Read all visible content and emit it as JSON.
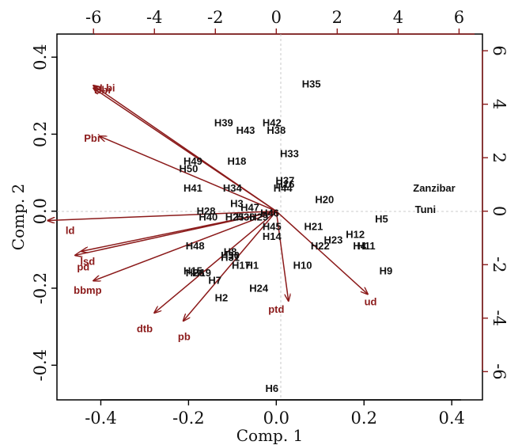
{
  "colors": {
    "arrow": "#8b1a1a",
    "text": "#111111"
  },
  "chart_data": {
    "type": "scatter",
    "subtype": "biplot",
    "xlabel": "Comp. 1",
    "ylabel": "Comp. 2",
    "xlim": [
      -0.5,
      0.47
    ],
    "ylim": [
      -0.49,
      0.46
    ],
    "x_ticks": [
      "-0.4",
      "-0.2",
      "0.0",
      "0.2",
      "0.4"
    ],
    "x_tick_values": [
      -0.4,
      -0.2,
      0.0,
      0.2,
      0.4
    ],
    "y_ticks": [
      "-0.4",
      "-0.2",
      "0.0",
      "0.2",
      "0.4"
    ],
    "y_tick_values": [
      -0.4,
      -0.2,
      0.0,
      0.2,
      0.4
    ],
    "top_ticks": [
      "-6",
      "-4",
      "-2",
      "0",
      "2",
      "4",
      "6"
    ],
    "top_tick_values": [
      -6,
      -4,
      -2,
      0,
      2,
      4,
      6
    ],
    "right_ticks": [
      "6",
      "4",
      "2",
      "0",
      "-2",
      "-4",
      "-6"
    ],
    "right_tick_values": [
      6,
      4,
      2,
      0,
      -2,
      -4,
      -6
    ],
    "loadings_scale": 14.4,
    "observations": [
      {
        "label": "H35",
        "x": 0.08,
        "y": 0.33
      },
      {
        "label": "H39",
        "x": -0.12,
        "y": 0.23
      },
      {
        "label": "H42",
        "x": -0.01,
        "y": 0.23
      },
      {
        "label": "H43",
        "x": -0.07,
        "y": 0.21
      },
      {
        "label": "H38",
        "x": 0.0,
        "y": 0.21
      },
      {
        "label": "H33",
        "x": 0.03,
        "y": 0.15
      },
      {
        "label": "H49",
        "x": -0.19,
        "y": 0.13
      },
      {
        "label": "H18",
        "x": -0.09,
        "y": 0.13
      },
      {
        "label": "H50",
        "x": -0.2,
        "y": 0.11
      },
      {
        "label": "H37",
        "x": 0.02,
        "y": 0.08
      },
      {
        "label": "H16",
        "x": 0.02,
        "y": 0.07
      },
      {
        "label": "H44",
        "x": 0.015,
        "y": 0.06
      },
      {
        "label": "H41",
        "x": -0.19,
        "y": 0.06
      },
      {
        "label": "H34",
        "x": -0.1,
        "y": 0.06
      },
      {
        "label": "H20",
        "x": 0.11,
        "y": 0.03
      },
      {
        "label": "H3",
        "x": -0.09,
        "y": 0.02
      },
      {
        "label": "H47",
        "x": -0.06,
        "y": 0.01
      },
      {
        "label": "H28",
        "x": -0.16,
        "y": 0.0
      },
      {
        "label": "H46",
        "x": -0.015,
        "y": -0.005
      },
      {
        "label": "H40",
        "x": -0.155,
        "y": -0.015
      },
      {
        "label": "H25",
        "x": -0.095,
        "y": -0.015
      },
      {
        "label": "H36",
        "x": -0.07,
        "y": -0.015
      },
      {
        "label": "H29",
        "x": -0.04,
        "y": -0.015
      },
      {
        "label": "H21",
        "x": 0.085,
        "y": -0.04
      },
      {
        "label": "H45",
        "x": -0.01,
        "y": -0.04
      },
      {
        "label": "H14",
        "x": -0.01,
        "y": -0.065
      },
      {
        "label": "H5",
        "x": 0.24,
        "y": -0.02
      },
      {
        "label": "H12",
        "x": 0.18,
        "y": -0.06
      },
      {
        "label": "H23",
        "x": 0.13,
        "y": -0.075
      },
      {
        "label": "H22",
        "x": 0.1,
        "y": -0.09
      },
      {
        "label": "H4",
        "x": 0.19,
        "y": -0.09
      },
      {
        "label": "H11",
        "x": 0.205,
        "y": -0.09
      },
      {
        "label": "H48",
        "x": -0.185,
        "y": -0.09
      },
      {
        "label": "H8",
        "x": -0.105,
        "y": -0.105
      },
      {
        "label": "H30",
        "x": -0.105,
        "y": -0.115
      },
      {
        "label": "H31",
        "x": -0.105,
        "y": -0.12
      },
      {
        "label": "H17",
        "x": -0.08,
        "y": -0.14
      },
      {
        "label": "H1",
        "x": -0.055,
        "y": -0.14
      },
      {
        "label": "H10",
        "x": 0.06,
        "y": -0.14
      },
      {
        "label": "H9",
        "x": 0.25,
        "y": -0.155
      },
      {
        "label": "H15",
        "x": -0.19,
        "y": -0.155
      },
      {
        "label": "H26",
        "x": -0.185,
        "y": -0.16
      },
      {
        "label": "H19",
        "x": -0.17,
        "y": -0.16
      },
      {
        "label": "H7",
        "x": -0.14,
        "y": -0.18
      },
      {
        "label": "H24",
        "x": -0.04,
        "y": -0.2
      },
      {
        "label": "H2",
        "x": -0.125,
        "y": -0.225
      },
      {
        "label": "H6",
        "x": -0.01,
        "y": -0.46
      },
      {
        "label": "Zanzibar",
        "x": 0.36,
        "y": 0.06
      },
      {
        "label": "Tuni",
        "x": 0.34,
        "y": 0.005
      }
    ],
    "variables": [
      {
        "label": "Lbi",
        "x": -6.0,
        "y": 4.6,
        "lx": -0.385,
        "ly": 0.32
      },
      {
        "label": "Bbr",
        "x": -6.0,
        "y": 4.7,
        "lx": -0.395,
        "ly": 0.315
      },
      {
        "label": "Pbi",
        "x": -5.8,
        "y": 2.8,
        "lx": -0.42,
        "ly": 0.19
      },
      {
        "label": "ld",
        "x": -7.5,
        "y": -0.35,
        "lx": -0.47,
        "ly": -0.05
      },
      {
        "label": "lsd",
        "x": -6.4,
        "y": -1.5,
        "lx": -0.43,
        "ly": -0.13
      },
      {
        "label": "pd",
        "x": -6.6,
        "y": -1.65,
        "lx": -0.44,
        "ly": -0.145
      },
      {
        "label": "bbmp",
        "x": -6.0,
        "y": -2.6,
        "lx": -0.43,
        "ly": -0.205
      },
      {
        "label": "dtb",
        "x": -4.0,
        "y": -3.8,
        "lx": -0.3,
        "ly": -0.305
      },
      {
        "label": "pb",
        "x": -3.05,
        "y": -4.1,
        "lx": -0.21,
        "ly": -0.325
      },
      {
        "label": "ptd",
        "x": 0.4,
        "y": -3.35,
        "lx": 0.0,
        "ly": -0.255
      },
      {
        "label": "ud",
        "x": 3.0,
        "y": -3.1,
        "lx": 0.215,
        "ly": -0.235
      }
    ]
  }
}
